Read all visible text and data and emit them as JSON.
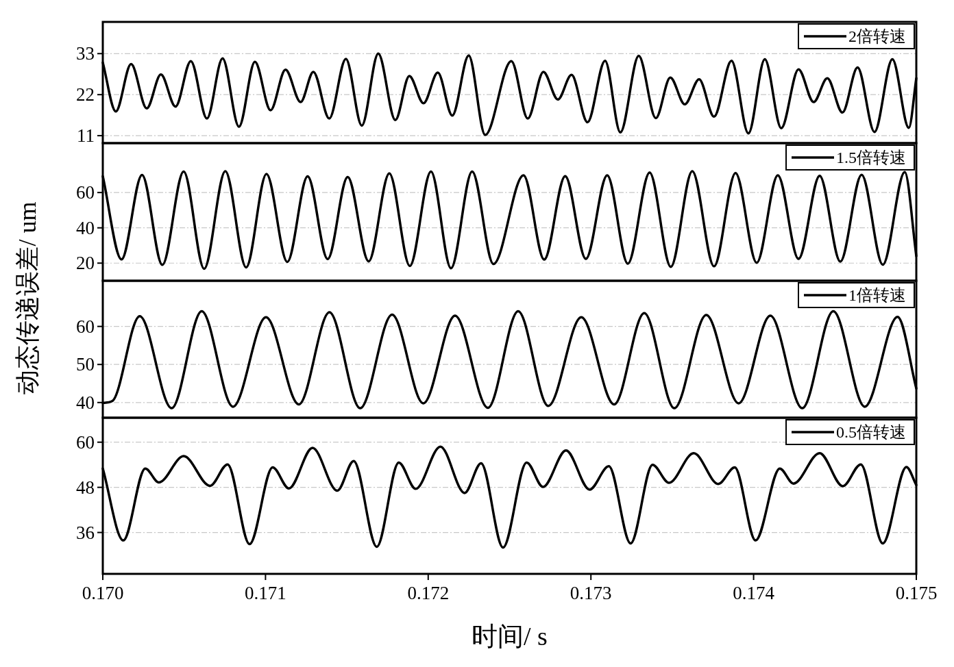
{
  "chart_data": [
    {
      "type": "line",
      "ylabel": "动态传递误差/ um",
      "xlim": [
        0.17,
        0.175
      ],
      "ylim": [
        9,
        41.5
      ],
      "yticks": [
        11,
        22,
        33
      ],
      "grid": "y",
      "legend": "top right",
      "tick_labels": "y",
      "x": [
        0.17,
        0.17008,
        0.170174,
        0.17027,
        0.170357,
        0.170447,
        0.170541,
        0.17064,
        0.170736,
        0.170837,
        0.170935,
        0.171031,
        0.171123,
        0.171216,
        0.171294,
        0.171392,
        0.171494,
        0.171592,
        0.171693,
        0.171798,
        0.171884,
        0.171971,
        0.172059,
        0.172148,
        0.172249,
        0.17235,
        0.172511,
        0.172612,
        0.172708,
        0.172797,
        0.172881,
        0.172979,
        0.173087,
        0.173181,
        0.173294,
        0.173399,
        0.173488,
        0.173577,
        0.173665,
        0.173757,
        0.173864,
        0.173968,
        0.174069,
        0.17417,
        0.174276,
        0.174369,
        0.174453,
        0.174546,
        0.174639,
        0.174743,
        0.174853,
        0.174954,
        0.175
      ],
      "series": [
        {
          "name": "2倍转速",
          "color": "#000000",
          "values": [
            30.6,
            17.5,
            30.2,
            18.3,
            27.4,
            18.8,
            31.0,
            15.6,
            31.7,
            13.4,
            30.8,
            17.8,
            28.7,
            20.0,
            28.1,
            15.6,
            31.6,
            13.7,
            33.0,
            15.2,
            27.0,
            19.7,
            27.9,
            16.4,
            32.5,
            11.2,
            31.0,
            15.6,
            28.1,
            20.7,
            27.3,
            14.6,
            31.1,
            11.9,
            32.4,
            15.7,
            26.6,
            19.4,
            26.1,
            16.1,
            31.1,
            11.6,
            31.5,
            13.0,
            28.8,
            20.0,
            26.4,
            17.2,
            29.3,
            12.0,
            31.5,
            13.1,
            26.4
          ]
        }
      ]
    },
    {
      "type": "line",
      "xlim": [
        0.17,
        0.175
      ],
      "ylim": [
        10,
        88
      ],
      "yticks": [
        20,
        40,
        60
      ],
      "grid": "y",
      "legend": "top right",
      "tick_labels": "y",
      "x": [
        0.17,
        0.170115,
        0.170241,
        0.170366,
        0.170497,
        0.170623,
        0.170753,
        0.170881,
        0.171006,
        0.171134,
        0.171259,
        0.171382,
        0.171505,
        0.171634,
        0.171761,
        0.171887,
        0.172017,
        0.17214,
        0.17227,
        0.172401,
        0.172586,
        0.172713,
        0.172842,
        0.172969,
        0.1731,
        0.173227,
        0.173361,
        0.173491,
        0.173623,
        0.173757,
        0.173889,
        0.174019,
        0.174149,
        0.174276,
        0.174406,
        0.174533,
        0.174664,
        0.174794,
        0.174929,
        0.175
      ],
      "series": [
        {
          "name": "1.5倍转速",
          "color": "#000000",
          "values": [
            69.2,
            22.1,
            70.0,
            19.0,
            71.9,
            16.8,
            72.1,
            17.6,
            70.5,
            20.7,
            69.2,
            22.3,
            68.8,
            21.0,
            70.8,
            18.4,
            71.9,
            17.1,
            71.9,
            19.5,
            69.8,
            22.0,
            69.3,
            22.4,
            69.8,
            19.7,
            71.3,
            17.9,
            72.1,
            18.2,
            71.0,
            20.2,
            69.8,
            22.4,
            69.5,
            20.9,
            70.1,
            19.1,
            71.6,
            24.0
          ]
        }
      ]
    },
    {
      "type": "line",
      "xlim": [
        0.17,
        0.175
      ],
      "ylim": [
        36,
        72
      ],
      "yticks": [
        40,
        50,
        60
      ],
      "grid": "y",
      "legend": "top right",
      "tick_labels": "y",
      "x": [
        0.17,
        0.170059,
        0.170227,
        0.170423,
        0.170608,
        0.1708,
        0.171003,
        0.171205,
        0.171393,
        0.171582,
        0.171778,
        0.17197,
        0.172165,
        0.172367,
        0.172553,
        0.172738,
        0.172941,
        0.173143,
        0.173328,
        0.173513,
        0.173709,
        0.173908,
        0.174103,
        0.174299,
        0.17449,
        0.174683,
        0.174885,
        0.175
      ],
      "series": [
        {
          "name": "1倍转速",
          "color": "#000000",
          "values": [
            39.9,
            40.4,
            62.7,
            38.5,
            64.0,
            38.9,
            62.4,
            39.5,
            63.7,
            38.5,
            63.1,
            39.8,
            62.8,
            38.6,
            64.0,
            39.1,
            62.4,
            39.5,
            63.5,
            38.5,
            63.0,
            39.8,
            62.8,
            38.5,
            64.0,
            38.9,
            62.5,
            43.7
          ]
        }
      ]
    },
    {
      "type": "line",
      "xlabel": "时间/ s",
      "xlim": [
        0.17,
        0.175
      ],
      "xticks": [
        {
          "value": 0.17,
          "label": "0.170"
        },
        0.171,
        0.172,
        0.173,
        0.174,
        0.175
      ],
      "ylim": [
        25,
        66.5
      ],
      "yticks": [
        36,
        48,
        60
      ],
      "grid": "y",
      "legend": "top right",
      "x": [
        0.17,
        0.170126,
        0.170261,
        0.170345,
        0.170497,
        0.170659,
        0.170767,
        0.170902,
        0.171044,
        0.171144,
        0.171289,
        0.171441,
        0.171542,
        0.171684,
        0.171819,
        0.171923,
        0.172075,
        0.172224,
        0.172325,
        0.17246,
        0.172605,
        0.172706,
        0.172847,
        0.172992,
        0.17311,
        0.173244,
        0.173379,
        0.17348,
        0.173632,
        0.173783,
        0.173884,
        0.174012,
        0.174161,
        0.174245,
        0.174406,
        0.174548,
        0.174659,
        0.174794,
        0.174939,
        0.175
      ],
      "series": [
        {
          "name": "0.5倍转速",
          "color": "#000000",
          "values": [
            53.0,
            33.9,
            53.0,
            49.3,
            56.3,
            48.4,
            54.1,
            32.9,
            53.3,
            47.7,
            58.5,
            47.1,
            55.0,
            32.2,
            54.6,
            47.6,
            58.8,
            46.5,
            54.4,
            32.0,
            54.6,
            48.1,
            57.8,
            47.4,
            53.6,
            33.1,
            54.0,
            49.2,
            57.1,
            48.9,
            53.3,
            33.9,
            53.0,
            49.0,
            57.1,
            48.3,
            54.1,
            33.1,
            53.4,
            48.6
          ]
        }
      ]
    }
  ]
}
